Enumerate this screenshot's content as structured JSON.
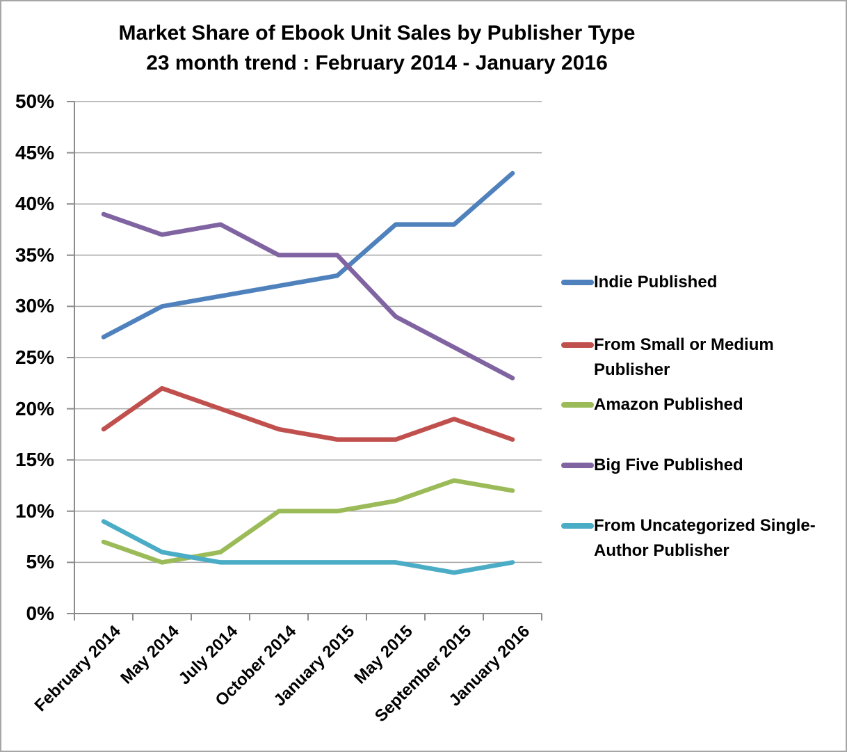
{
  "title": {
    "line1": "Market Share of Ebook Unit Sales by Publisher Type",
    "line2": "23 month trend : February 2014 - January 2016"
  },
  "chart_data": {
    "type": "line",
    "categories": [
      "February 2014",
      "May 2014",
      "July 2014",
      "October 2014",
      "January 2015",
      "May 2015",
      "September 2015",
      "January 2016"
    ],
    "series": [
      {
        "name": "Indie Published",
        "color": "#4F81BD",
        "values": [
          27,
          30,
          31,
          32,
          33,
          38,
          38,
          43
        ]
      },
      {
        "name": "From Small or Medium Publisher",
        "color": "#C0504D",
        "values": [
          18,
          22,
          20,
          18,
          17,
          17,
          19,
          17
        ]
      },
      {
        "name": "Amazon Published",
        "color": "#9BBB59",
        "values": [
          7,
          5,
          6,
          10,
          10,
          11,
          13,
          12
        ]
      },
      {
        "name": "Big Five Published",
        "color": "#8064A2",
        "values": [
          39,
          37,
          38,
          35,
          35,
          29,
          26,
          23
        ]
      },
      {
        "name": "From Uncategorized Single-Author Publisher",
        "color": "#4BACC6",
        "values": [
          9,
          6,
          5,
          5,
          5,
          5,
          4,
          5
        ]
      }
    ],
    "ylabel": "",
    "xlabel": "",
    "ylim": [
      0,
      50
    ],
    "y_tick_step": 5,
    "y_tick_labels": [
      "0%",
      "5%",
      "10%",
      "15%",
      "20%",
      "25%",
      "30%",
      "35%",
      "40%",
      "45%",
      "50%"
    ],
    "grid": true,
    "legend_position": "right"
  },
  "colors": {
    "gridline": "#A6A6A6",
    "axis": "#8C8C8C",
    "page_border": "#A6A6A6",
    "text": "#000000"
  }
}
